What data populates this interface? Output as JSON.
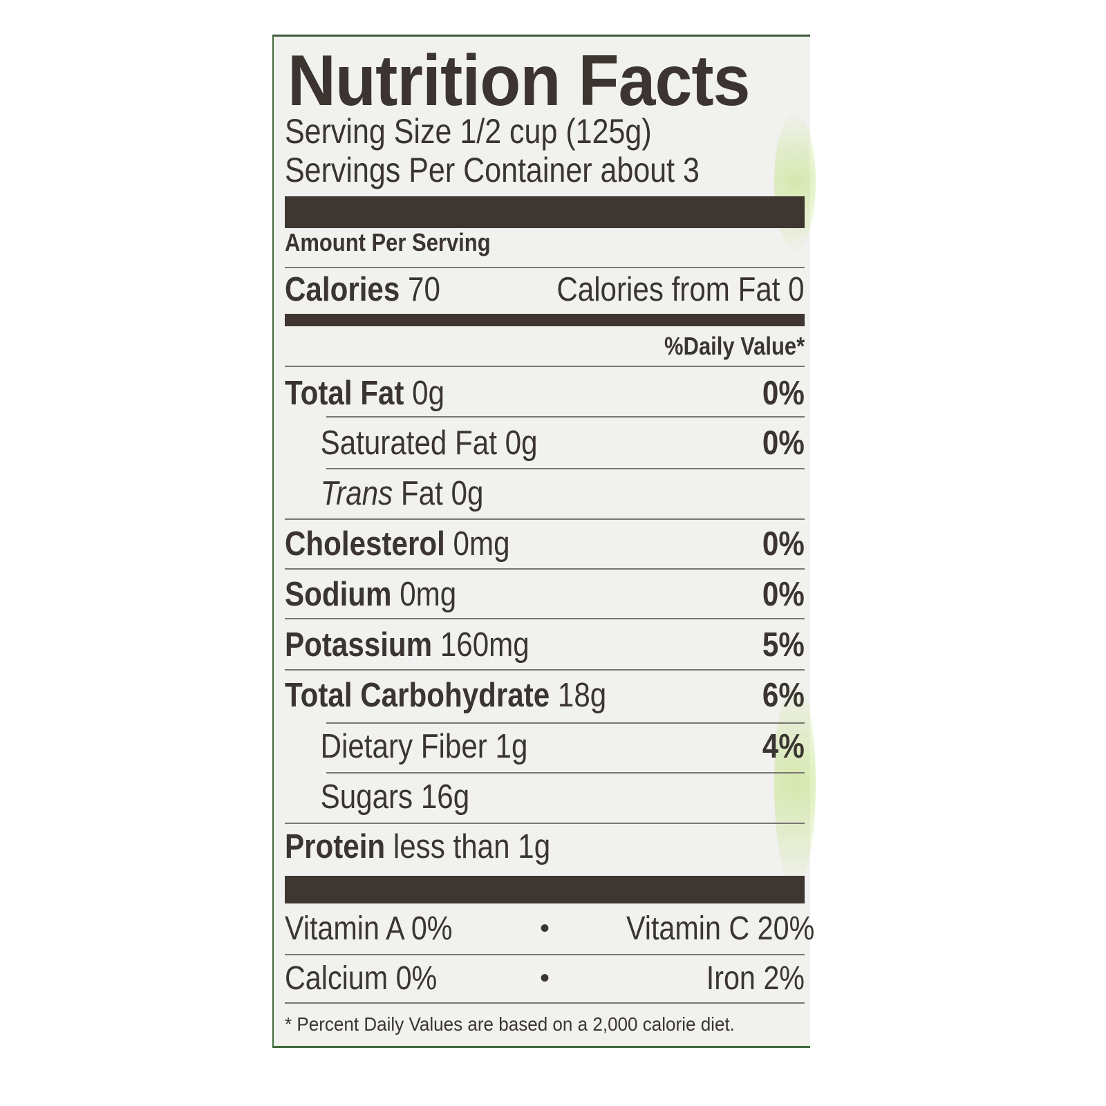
{
  "title": "Nutrition Facts",
  "serving_size": "Serving Size 1/2 cup (125g)",
  "servings_per_container": "Servings Per Container about 3",
  "amount_per_serving": "Amount Per Serving",
  "calories": {
    "label": "Calories",
    "value": "70",
    "from_fat": "Calories from Fat 0"
  },
  "daily_value_header": "%Daily Value*",
  "nutrients": [
    {
      "label": "Total Fat",
      "amount": "0g",
      "pct": "0%"
    },
    {
      "label": "Saturated Fat",
      "amount": "0g",
      "pct": "0%"
    },
    {
      "label": "Trans",
      "amount": "Fat 0g",
      "pct": ""
    },
    {
      "label": "Cholesterol",
      "amount": "0mg",
      "pct": "0%"
    },
    {
      "label": "Sodium",
      "amount": "0mg",
      "pct": "0%"
    },
    {
      "label": "Potassium",
      "amount": "160mg",
      "pct": "5%"
    },
    {
      "label": "Total Carbohydrate",
      "amount": "18g",
      "pct": "6%"
    },
    {
      "label": "Dietary Fiber",
      "amount": "1g",
      "pct": "4%"
    },
    {
      "label": "Sugars",
      "amount": "16g",
      "pct": ""
    },
    {
      "label": "Protein",
      "amount": "less than 1g",
      "pct": ""
    }
  ],
  "vitamins": [
    {
      "left": "Vitamin A 0%",
      "sep": "•",
      "right": "Vitamin C 20%"
    },
    {
      "left": "Calcium 0%",
      "sep": "•",
      "right": "Iron 2%"
    }
  ],
  "footnote": "* Percent Daily Values are based on a 2,000 calorie diet.",
  "colors": {
    "text": "#3a3531",
    "background": "#f1f1ef",
    "border": "#3f6b3c"
  }
}
